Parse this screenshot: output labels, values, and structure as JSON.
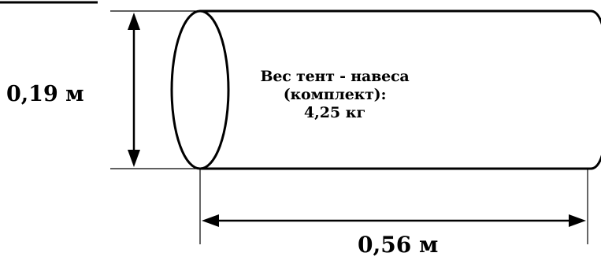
{
  "diagram": {
    "dimensions": {
      "diameter": "0,19 м",
      "length": "0,56 м"
    },
    "info": {
      "weight_title": "Вес тент - навеса (комплект):",
      "weight_value": "4,25 кг"
    },
    "colors": {
      "stroke": "#000000",
      "background": "#ffffff"
    }
  }
}
